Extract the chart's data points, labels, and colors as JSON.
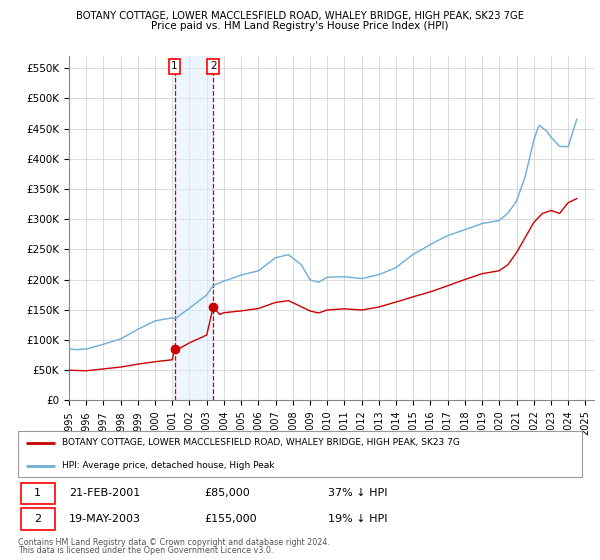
{
  "title": "BOTANY COTTAGE, LOWER MACCLESFIELD ROAD, WHALEY BRIDGE, HIGH PEAK, SK23 7GE",
  "subtitle": "Price paid vs. HM Land Registry's House Price Index (HPI)",
  "ylabel_ticks": [
    "£0",
    "£50K",
    "£100K",
    "£150K",
    "£200K",
    "£250K",
    "£300K",
    "£350K",
    "£400K",
    "£450K",
    "£500K",
    "£550K"
  ],
  "ytick_vals": [
    0,
    50000,
    100000,
    150000,
    200000,
    250000,
    300000,
    350000,
    400000,
    450000,
    500000,
    550000
  ],
  "ylim": [
    0,
    570000
  ],
  "xlim_start": 1995.0,
  "xlim_end": 2025.5,
  "sale1_date": 2001.13,
  "sale1_price": 85000,
  "sale1_label": "1",
  "sale1_date_str": "21-FEB-2001",
  "sale1_price_str": "£85,000",
  "sale1_hpi_str": "37% ↓ HPI",
  "sale2_date": 2003.38,
  "sale2_price": 155000,
  "sale2_label": "2",
  "sale2_date_str": "19-MAY-2003",
  "sale2_price_str": "£155,000",
  "sale2_hpi_str": "19% ↓ HPI",
  "hpi_color": "#6baed6",
  "price_color": "#cc0000",
  "shade_color": "#ddeeff",
  "shade_alpha": 0.5,
  "legend_property_label": "BOTANY COTTAGE, LOWER MACCLESFIELD ROAD, WHALEY BRIDGE, HIGH PEAK, SK23 7G",
  "legend_hpi_label": "HPI: Average price, detached house, High Peak",
  "footer1": "Contains HM Land Registry data © Crown copyright and database right 2024.",
  "footer2": "This data is licensed under the Open Government Licence v3.0."
}
